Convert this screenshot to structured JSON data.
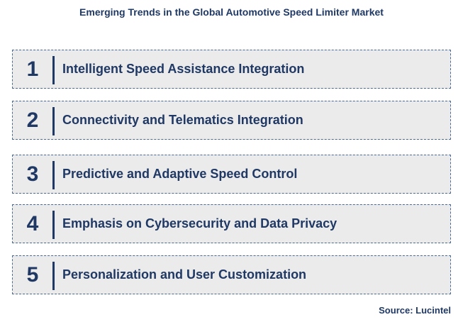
{
  "title": "Emerging Trends in the Global Automotive Speed Limiter Market",
  "trends": [
    {
      "number": "1",
      "label": "Intelligent Speed Assistance Integration"
    },
    {
      "number": "2",
      "label": "Connectivity and Telematics Integration"
    },
    {
      "number": "3",
      "label": "Predictive and Adaptive Speed Control"
    },
    {
      "number": "4",
      "label": "Emphasis on Cybersecurity and Data Privacy"
    },
    {
      "number": "5",
      "label": "Personalization and User Customization"
    }
  ],
  "source": "Source: Lucintel",
  "colors": {
    "text": "#1f3864",
    "box_fill": "#ebebeb",
    "box_border": "#4a6a94"
  }
}
